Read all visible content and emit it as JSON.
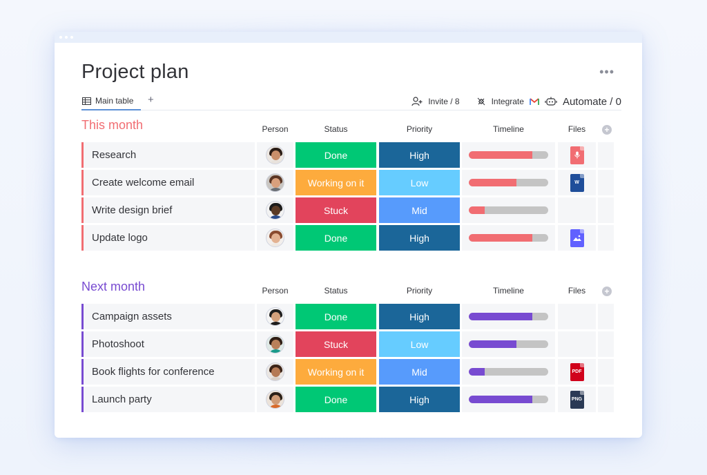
{
  "page": {
    "title": "Project plan",
    "more_label": "•••",
    "tabs": [
      {
        "label": "Main table"
      }
    ],
    "add_tab_label": "+",
    "toolbar": {
      "invite_label": "Invite / 8",
      "integrate_label": "Integrate",
      "automate_label": "Automate / 0"
    }
  },
  "columns": {
    "person": "Person",
    "status": "Status",
    "priority": "Priority",
    "timeline": "Timeline",
    "files": "Files"
  },
  "colors": {
    "done": "#00c875",
    "working": "#fdab3d",
    "stuck": "#e2445c",
    "high": "#1b6699",
    "low": "#66ccff",
    "mid": "#579bfc",
    "this_month": "#f16d72",
    "next_month": "#784bd1"
  },
  "groups": [
    {
      "title": "This month",
      "color": "#f16d72",
      "rows": [
        {
          "name": "Research",
          "status": "Done",
          "status_color": "#00c875",
          "priority": "High",
          "priority_color": "#1b6699",
          "timeline_progress": 0.8,
          "file": "audio",
          "file_label": "",
          "file_color": "#f16d72",
          "avatar": "woman-dark-hair"
        },
        {
          "name": "Create welcome email",
          "status": "Working on it",
          "status_color": "#fdab3d",
          "priority": "Low",
          "priority_color": "#66ccff",
          "timeline_progress": 0.6,
          "file": "word",
          "file_label": "W",
          "file_color": "#1f4e9a",
          "avatar": "woman-brown-hair"
        },
        {
          "name": "Write design brief",
          "status": "Stuck",
          "status_color": "#e2445c",
          "priority": "Mid",
          "priority_color": "#579bfc",
          "timeline_progress": 0.2,
          "file": "",
          "file_label": "",
          "file_color": "",
          "avatar": "man-dark-skin"
        },
        {
          "name": "Update logo",
          "status": "Done",
          "status_color": "#00c875",
          "priority": "High",
          "priority_color": "#1b6699",
          "timeline_progress": 0.8,
          "file": "image",
          "file_label": "",
          "file_color": "#6161ff",
          "avatar": "woman-red-hair"
        }
      ]
    },
    {
      "title": "Next month",
      "color": "#784bd1",
      "rows": [
        {
          "name": "Campaign assets",
          "status": "Done",
          "status_color": "#00c875",
          "priority": "High",
          "priority_color": "#1b6699",
          "timeline_progress": 0.8,
          "file": "",
          "file_label": "",
          "file_color": "",
          "avatar": "man-black-hair"
        },
        {
          "name": "Photoshoot",
          "status": "Stuck",
          "status_color": "#e2445c",
          "priority": "Low",
          "priority_color": "#66ccff",
          "timeline_progress": 0.6,
          "file": "",
          "file_label": "",
          "file_color": "",
          "avatar": "woman-teal-top"
        },
        {
          "name": "Book flights for conference",
          "status": "Working on it",
          "status_color": "#fdab3d",
          "priority": "Mid",
          "priority_color": "#579bfc",
          "timeline_progress": 0.2,
          "file": "pdf",
          "file_label": "PDF",
          "file_color": "#d0021b",
          "avatar": "woman-curly-hair"
        },
        {
          "name": "Launch party",
          "status": "Done",
          "status_color": "#00c875",
          "priority": "High",
          "priority_color": "#1b6699",
          "timeline_progress": 0.8,
          "file": "png",
          "file_label": "PNG",
          "file_color": "#2b3a55",
          "avatar": "man-smiling"
        }
      ]
    }
  ]
}
